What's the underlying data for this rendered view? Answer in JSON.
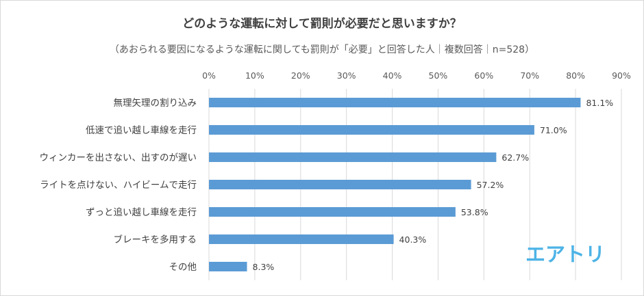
{
  "chart_data": {
    "type": "bar",
    "orientation": "horizontal",
    "title": "どのような運転に対して罰則が必要だと思いますか？",
    "subtitle": "（あおられる要因になるような運転に関しても罰則が「必要」と回答した人｜複数回答｜n=528）",
    "categories": [
      "無理矢理の割り込み",
      "低速で追い越し車線を走行",
      "ウィンカーを出さない、出すのが遅い",
      "ライトを点けない、ハイビームで走行",
      "ずっと追い越し車線を走行",
      "ブレーキを多用する",
      "その他"
    ],
    "values": [
      81.1,
      71.0,
      62.7,
      57.2,
      53.8,
      40.3,
      8.3
    ],
    "data_labels": [
      "81.1%",
      "71.0%",
      "62.7%",
      "57.2%",
      "53.8%",
      "40.3%",
      "8.3%"
    ],
    "x_ticks": [
      "0%",
      "10%",
      "20%",
      "30%",
      "40%",
      "50%",
      "60%",
      "70%",
      "80%",
      "90%"
    ],
    "xlim": [
      0,
      90
    ],
    "grid": true,
    "bar_color": "#5b9bd5",
    "xlabel": "",
    "ylabel": ""
  },
  "logo": {
    "text": "エアトリ",
    "color": "#4db3e6"
  }
}
